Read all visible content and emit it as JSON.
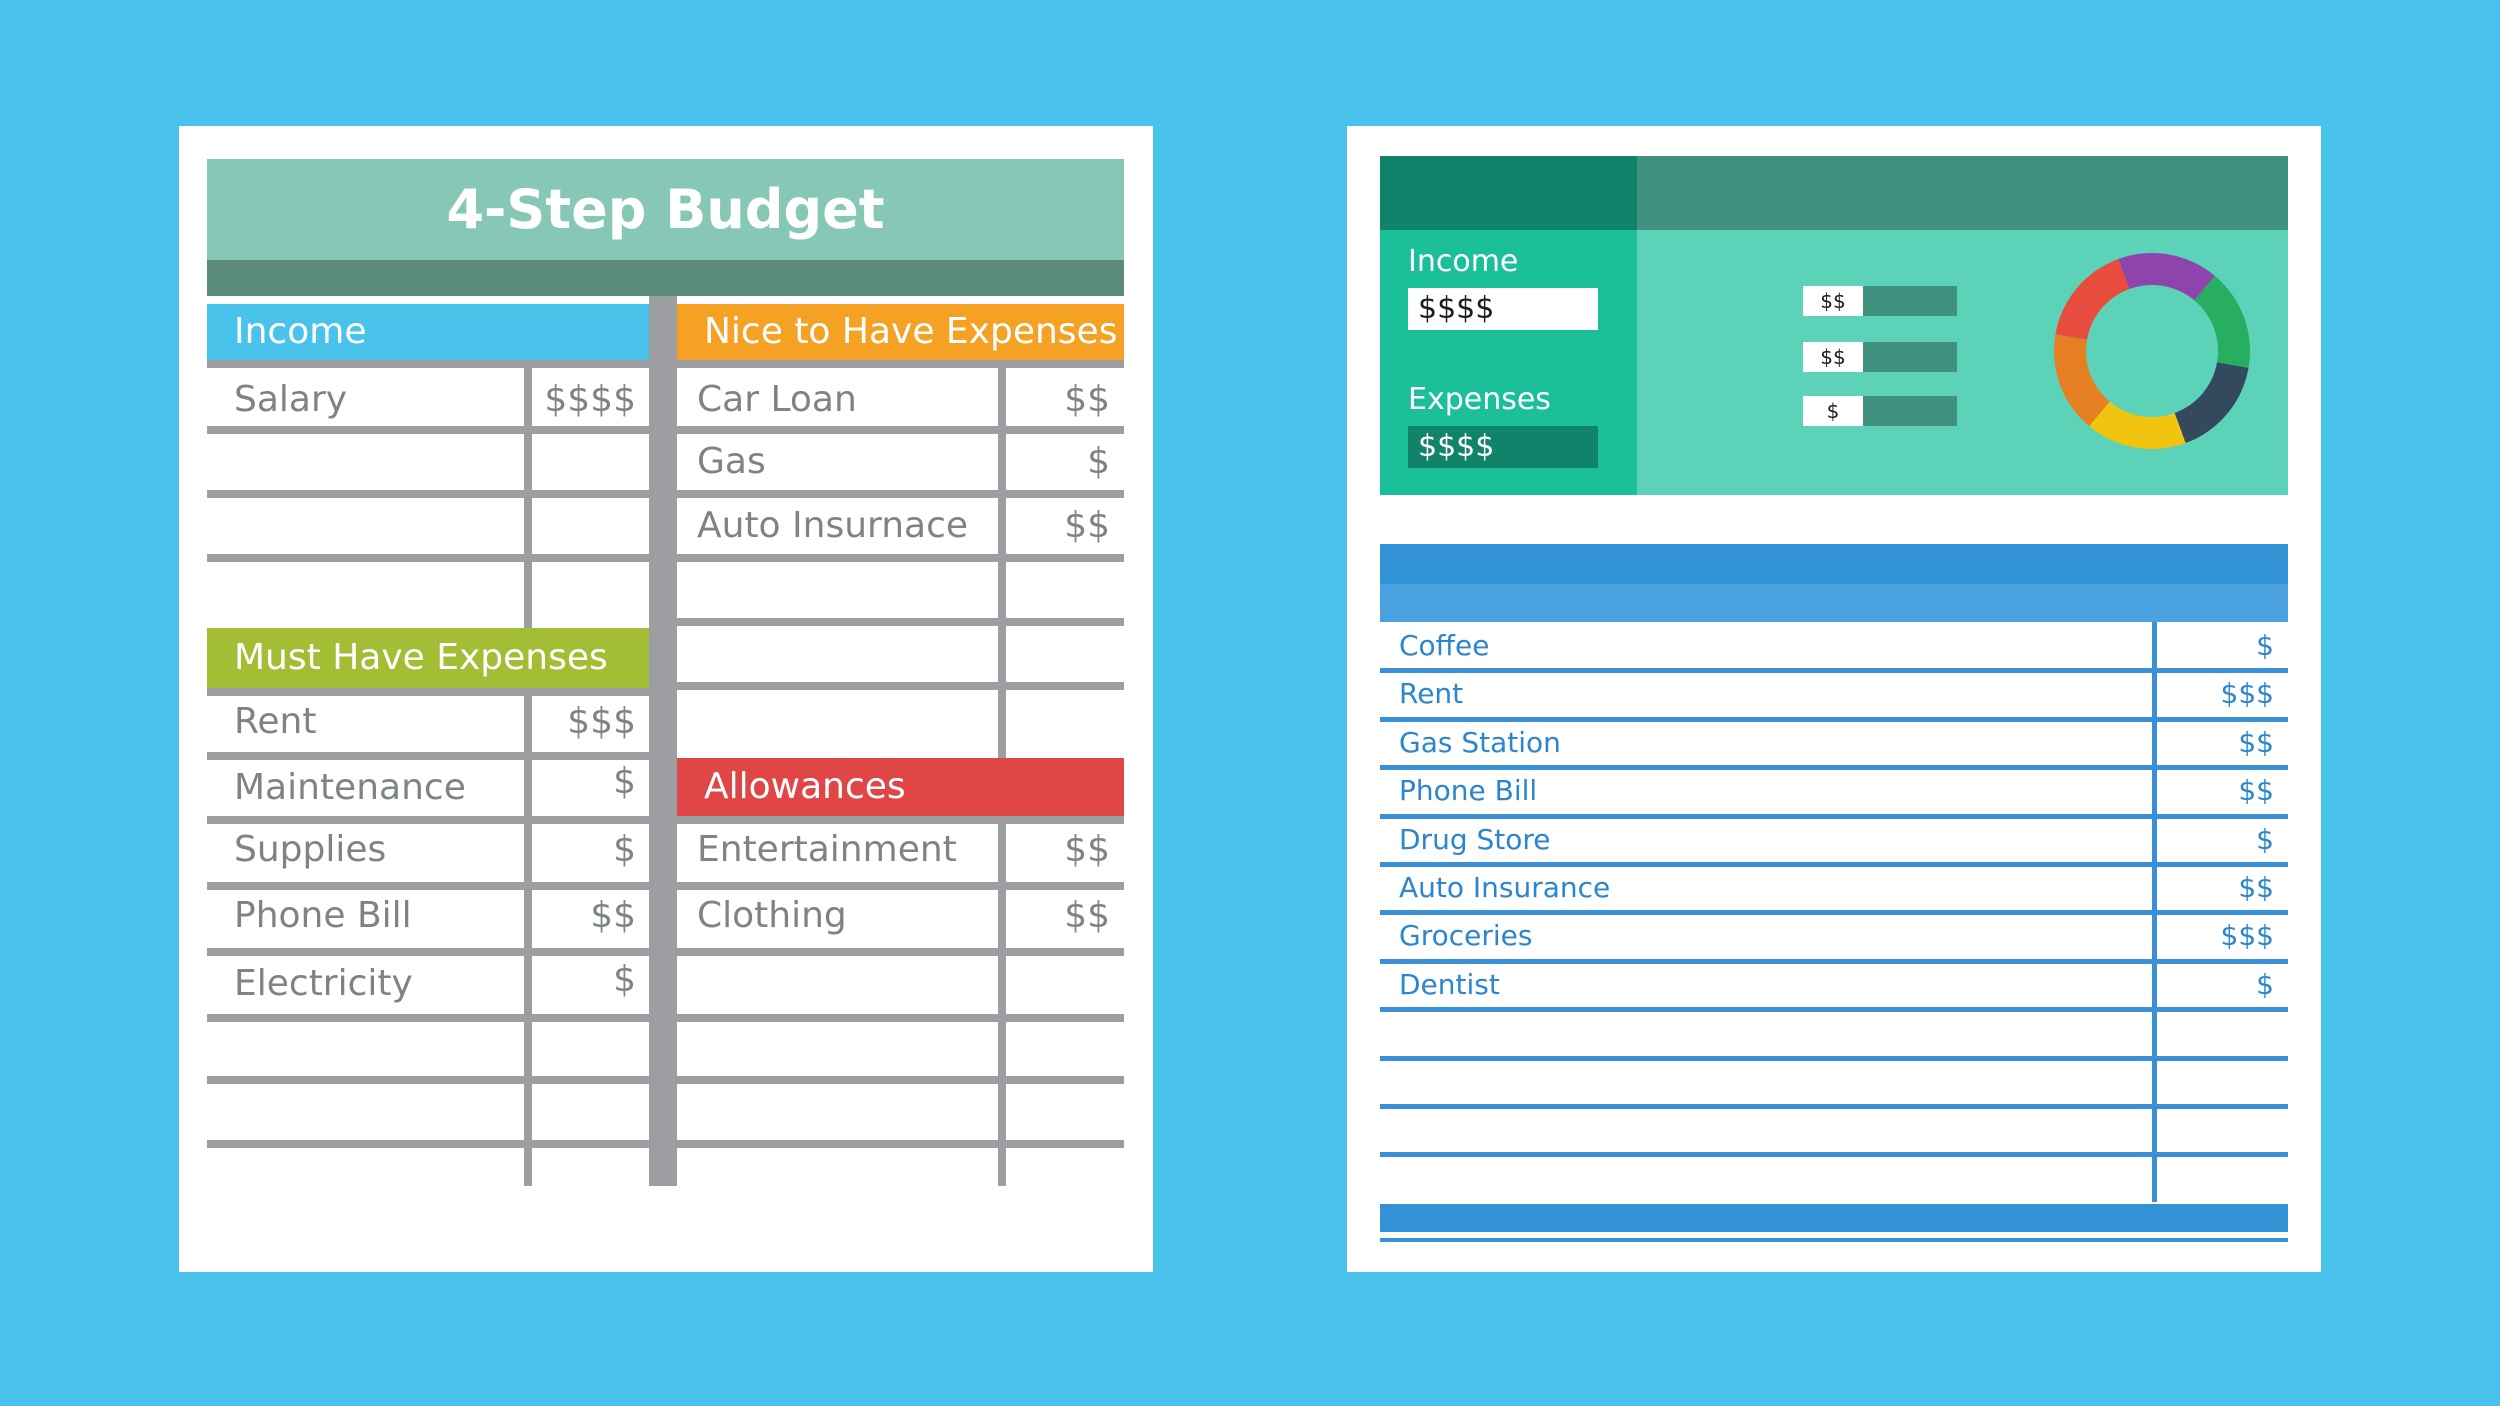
{
  "left": {
    "title": "4-Step Budget",
    "income": {
      "header": "Income",
      "rows": [
        {
          "label": "Salary",
          "amount": "$$$$"
        }
      ]
    },
    "must_have": {
      "header": "Must Have Expenses",
      "rows": [
        {
          "label": "Rent",
          "amount": "$$$"
        },
        {
          "label": "Maintenance",
          "amount": "$"
        },
        {
          "label": "Supplies",
          "amount": "$"
        },
        {
          "label": "Phone Bill",
          "amount": "$$"
        },
        {
          "label": "Electricity",
          "amount": "$"
        }
      ]
    },
    "nice_to_have": {
      "header": "Nice to Have Expenses",
      "rows": [
        {
          "label": "Car Loan",
          "amount": "$$"
        },
        {
          "label": "Gas",
          "amount": "$"
        },
        {
          "label": "Auto Insurnace",
          "amount": "$$"
        }
      ]
    },
    "allowances": {
      "header": "Allowances",
      "rows": [
        {
          "label": "Entertainment",
          "amount": "$$"
        },
        {
          "label": "Clothing",
          "amount": "$$"
        }
      ]
    }
  },
  "right": {
    "income_label": "Income",
    "income_value": "$$$$",
    "expenses_label": "Expenses",
    "expenses_value": "$$$$",
    "mini_bars": [
      "$$",
      "$$",
      "$"
    ],
    "donut": [
      "#8e44ad",
      "#27ae60",
      "#34495e",
      "#f1c40f",
      "#e67e22",
      "#e74c3c"
    ],
    "items": [
      {
        "label": "Coffee",
        "amount": "$"
      },
      {
        "label": "Rent",
        "amount": "$$$"
      },
      {
        "label": "Gas Station",
        "amount": "$$"
      },
      {
        "label": "Phone Bill",
        "amount": "$$"
      },
      {
        "label": "Drug Store",
        "amount": "$"
      },
      {
        "label": "Auto Insurance",
        "amount": "$$"
      },
      {
        "label": "Groceries",
        "amount": "$$$"
      },
      {
        "label": "Dentist",
        "amount": "$"
      }
    ]
  },
  "colors": {
    "background": "#4ac3ec",
    "income_header": "#4ac3ec",
    "must_have_header": "#a3bd34",
    "nice_header": "#f5a124",
    "allowances_header": "#e04646"
  }
}
